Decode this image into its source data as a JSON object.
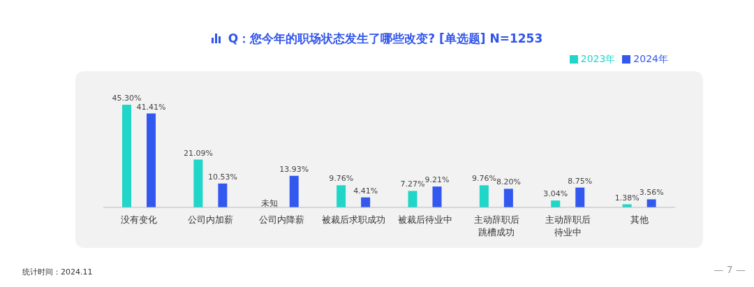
{
  "chart_data": {
    "type": "bar",
    "title": "Q：您今年的职场状态发生了哪些改变? [单选题] N=1253",
    "categories": [
      "没有变化",
      "公司内加薪",
      "公司内降薪",
      "被裁后求职成功",
      "被裁后待业中",
      "主动辞职后跳槽成功",
      "主动辞职后待业中",
      "其他"
    ],
    "series": [
      {
        "name": "2023年",
        "color": "#1fd6c9",
        "values": [
          45.3,
          21.09,
          null,
          9.76,
          7.27,
          9.76,
          3.04,
          1.38
        ],
        "value_labels": [
          "45.30%",
          "21.09%",
          "未知",
          "9.76%",
          "7.27%",
          "9.76%",
          "3.04%",
          "1.38%"
        ]
      },
      {
        "name": "2024年",
        "color": "#3358f0",
        "values": [
          41.41,
          10.53,
          13.93,
          4.41,
          9.21,
          8.2,
          8.75,
          3.56
        ],
        "value_labels": [
          "41.41%",
          "10.53%",
          "13.93%",
          "4.41%",
          "9.21%",
          "8.20%",
          "8.75%",
          "3.56%"
        ]
      }
    ],
    "legend": "top right",
    "annotations": [
      "统计时间：2024.11",
      "— 7 —"
    ]
  }
}
